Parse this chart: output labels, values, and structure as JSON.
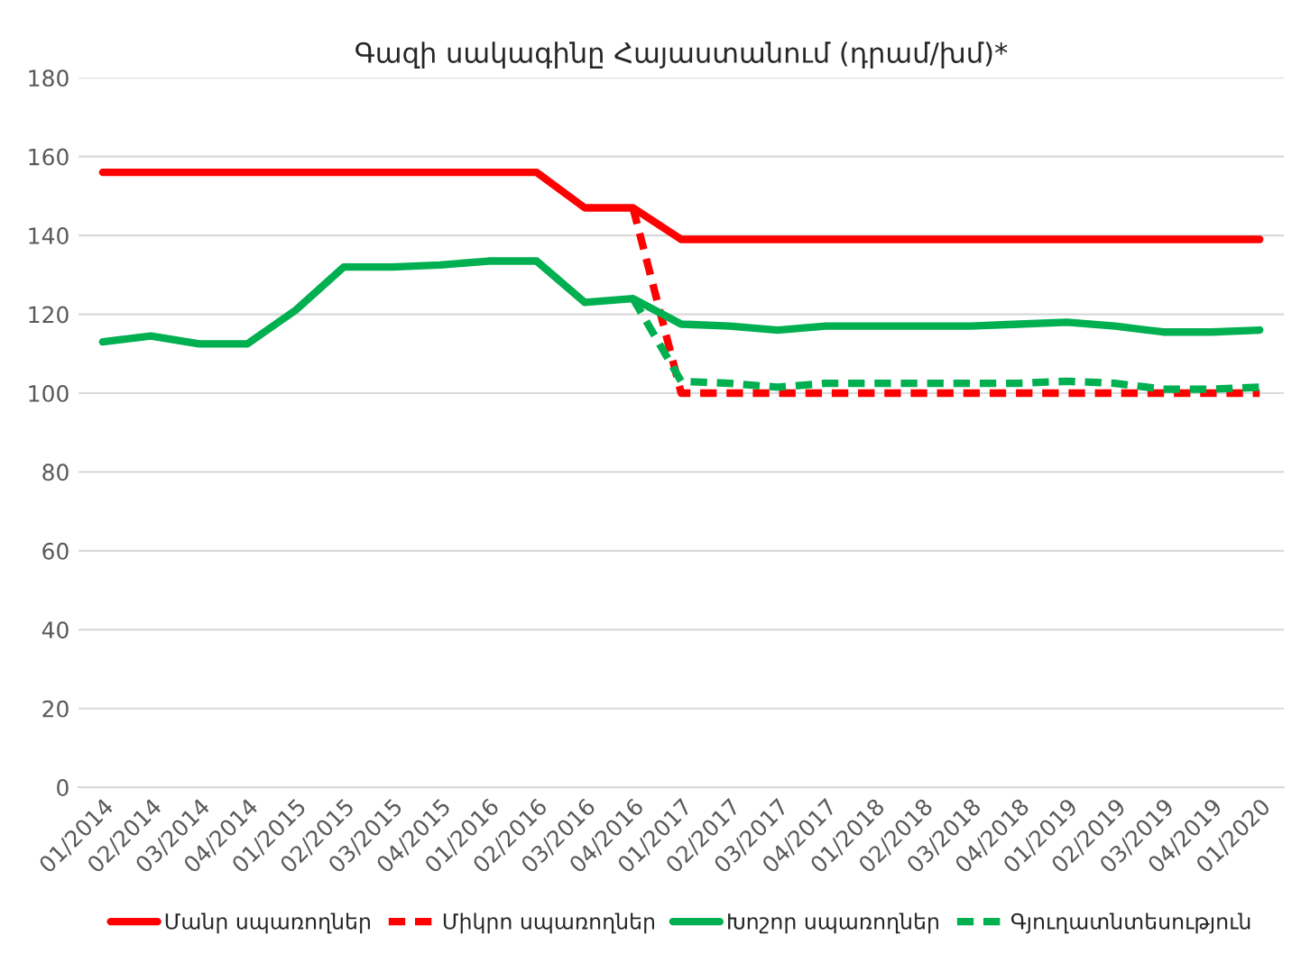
{
  "chart_data": {
    "type": "line",
    "title": "Գազի սակագինը Հայաստանում (դրամ/խմ)*",
    "categories": [
      "01/2014",
      "02/2014",
      "03/2014",
      "04/2014",
      "01/2015",
      "02/2015",
      "03/2015",
      "04/2015",
      "01/2016",
      "02/2016",
      "03/2016",
      "04/2016",
      "01/2017",
      "02/2017",
      "03/2017",
      "04/2017",
      "01/2018",
      "02/2018",
      "03/2018",
      "04/2018",
      "01/2019",
      "02/2019",
      "03/2019",
      "04/2019",
      "01/2020"
    ],
    "series": [
      {
        "name": "Մանր սպառողներ",
        "color": "#ff0000",
        "line_style": "solid",
        "values": [
          156,
          156,
          156,
          156,
          156,
          156,
          156,
          156,
          156,
          156,
          147,
          147,
          139,
          139,
          139,
          139,
          139,
          139,
          139,
          139,
          139,
          139,
          139,
          139,
          139
        ]
      },
      {
        "name": "Միկրո սպառողներ",
        "color": "#ff0000",
        "line_style": "dashed",
        "values": [
          null,
          null,
          null,
          null,
          null,
          null,
          null,
          null,
          null,
          null,
          null,
          147,
          100,
          100,
          100,
          100,
          100,
          100,
          100,
          100,
          100,
          100,
          100,
          100,
          100
        ]
      },
      {
        "name": "Խոշոր սպառողներ",
        "color": "#00b050",
        "line_style": "solid",
        "values": [
          113,
          114.5,
          112.5,
          112.5,
          121,
          132,
          132,
          132.5,
          133.5,
          133.5,
          123,
          124,
          117.5,
          117,
          116,
          117,
          117,
          117,
          117,
          117.5,
          118,
          117,
          115.5,
          115.5,
          116
        ]
      },
      {
        "name": "Գյուղատնտեսություն",
        "color": "#00b050",
        "line_style": "dashed",
        "values": [
          null,
          null,
          null,
          null,
          null,
          null,
          null,
          null,
          null,
          null,
          null,
          124,
          103,
          102.5,
          101.5,
          102.5,
          102.5,
          102.5,
          102.5,
          102.5,
          103,
          102.5,
          101,
          101,
          101.5
        ]
      }
    ],
    "ylim": [
      0,
      180
    ],
    "yticks": [
      0,
      20,
      40,
      60,
      80,
      100,
      120,
      140,
      160,
      180
    ],
    "grid": "y",
    "legend": "bottom",
    "marker": "none"
  }
}
